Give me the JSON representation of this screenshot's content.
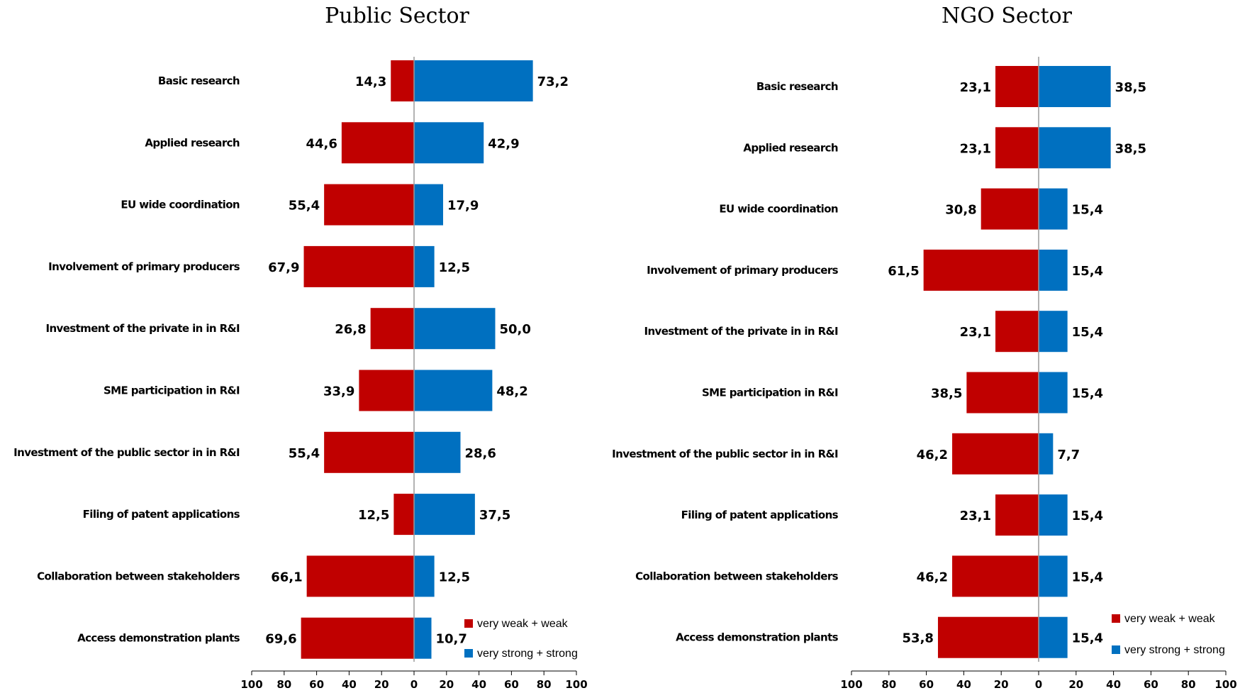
{
  "chart_data": [
    {
      "type": "bar",
      "orientation": "horizontal-diverging",
      "title": "Public Sector",
      "categories": [
        "Basic research",
        "Applied research",
        "EU wide coordination",
        "Involvement of primary producers",
        "Investment of the private  in  in R&I",
        "SME participation in R&I",
        "Investment of the public sector in  in R&I",
        "Filing of patent applications",
        "Collaboration between stakeholders",
        "Access demonstration plants"
      ],
      "series": [
        {
          "name": "very weak + weak",
          "color": "#C00000",
          "values": [
            14.3,
            44.6,
            55.4,
            67.9,
            26.8,
            33.9,
            55.4,
            12.5,
            66.1,
            69.6
          ],
          "labels": [
            "14,3",
            "44,6",
            "55,4",
            "67,9",
            "26,8",
            "33,9",
            "55,4",
            "12,5",
            "66,1",
            "69,6"
          ]
        },
        {
          "name": "very strong + strong",
          "color": "#0070C0",
          "values": [
            73.2,
            42.9,
            17.9,
            12.5,
            50.0,
            48.2,
            28.6,
            37.5,
            12.5,
            10.7
          ],
          "labels": [
            "73,2",
            "42,9",
            "17,9",
            "12,5",
            "50,0",
            "48,2",
            "28,6",
            "37,5",
            "12,5",
            "10,7"
          ]
        }
      ],
      "xlim": [
        -100,
        100
      ],
      "xticks": [
        "100",
        "80",
        "60",
        "40",
        "20",
        "0",
        "20",
        "40",
        "60",
        "80",
        "100"
      ],
      "legend_position": "bottom-right",
      "grid": false
    },
    {
      "type": "bar",
      "orientation": "horizontal-diverging",
      "title": "NGO Sector",
      "categories": [
        "Basic research",
        "Applied research",
        "EU wide coordination",
        "Involvement of primary producers",
        "Investment of the private  in  in R&I",
        "SME participation in R&I",
        "Investment of the public sector in  in R&I",
        "Filing of patent applications",
        "Collaboration between stakeholders",
        "Access demonstration plants"
      ],
      "series": [
        {
          "name": "very weak + weak",
          "color": "#C00000",
          "values": [
            23.1,
            23.1,
            30.8,
            61.5,
            23.1,
            38.5,
            46.2,
            23.1,
            46.2,
            53.8
          ],
          "labels": [
            "23,1",
            "23,1",
            "30,8",
            "61,5",
            "23,1",
            "38,5",
            "46,2",
            "23,1",
            "46,2",
            "53,8"
          ]
        },
        {
          "name": "very strong + strong",
          "color": "#0070C0",
          "values": [
            38.5,
            38.5,
            15.4,
            15.4,
            15.4,
            15.4,
            7.7,
            15.4,
            15.4,
            15.4
          ],
          "labels": [
            "38,5",
            "38,5",
            "15,4",
            "15,4",
            "15,4",
            "15,4",
            "7,7",
            "15,4",
            "15,4",
            "15,4"
          ]
        }
      ],
      "xlim": [
        -100,
        100
      ],
      "xticks": [
        "100",
        "80",
        "60",
        "40",
        "20",
        "0",
        "20",
        "40",
        "60",
        "80",
        "100"
      ],
      "legend_position": "bottom-right",
      "grid": false
    }
  ]
}
